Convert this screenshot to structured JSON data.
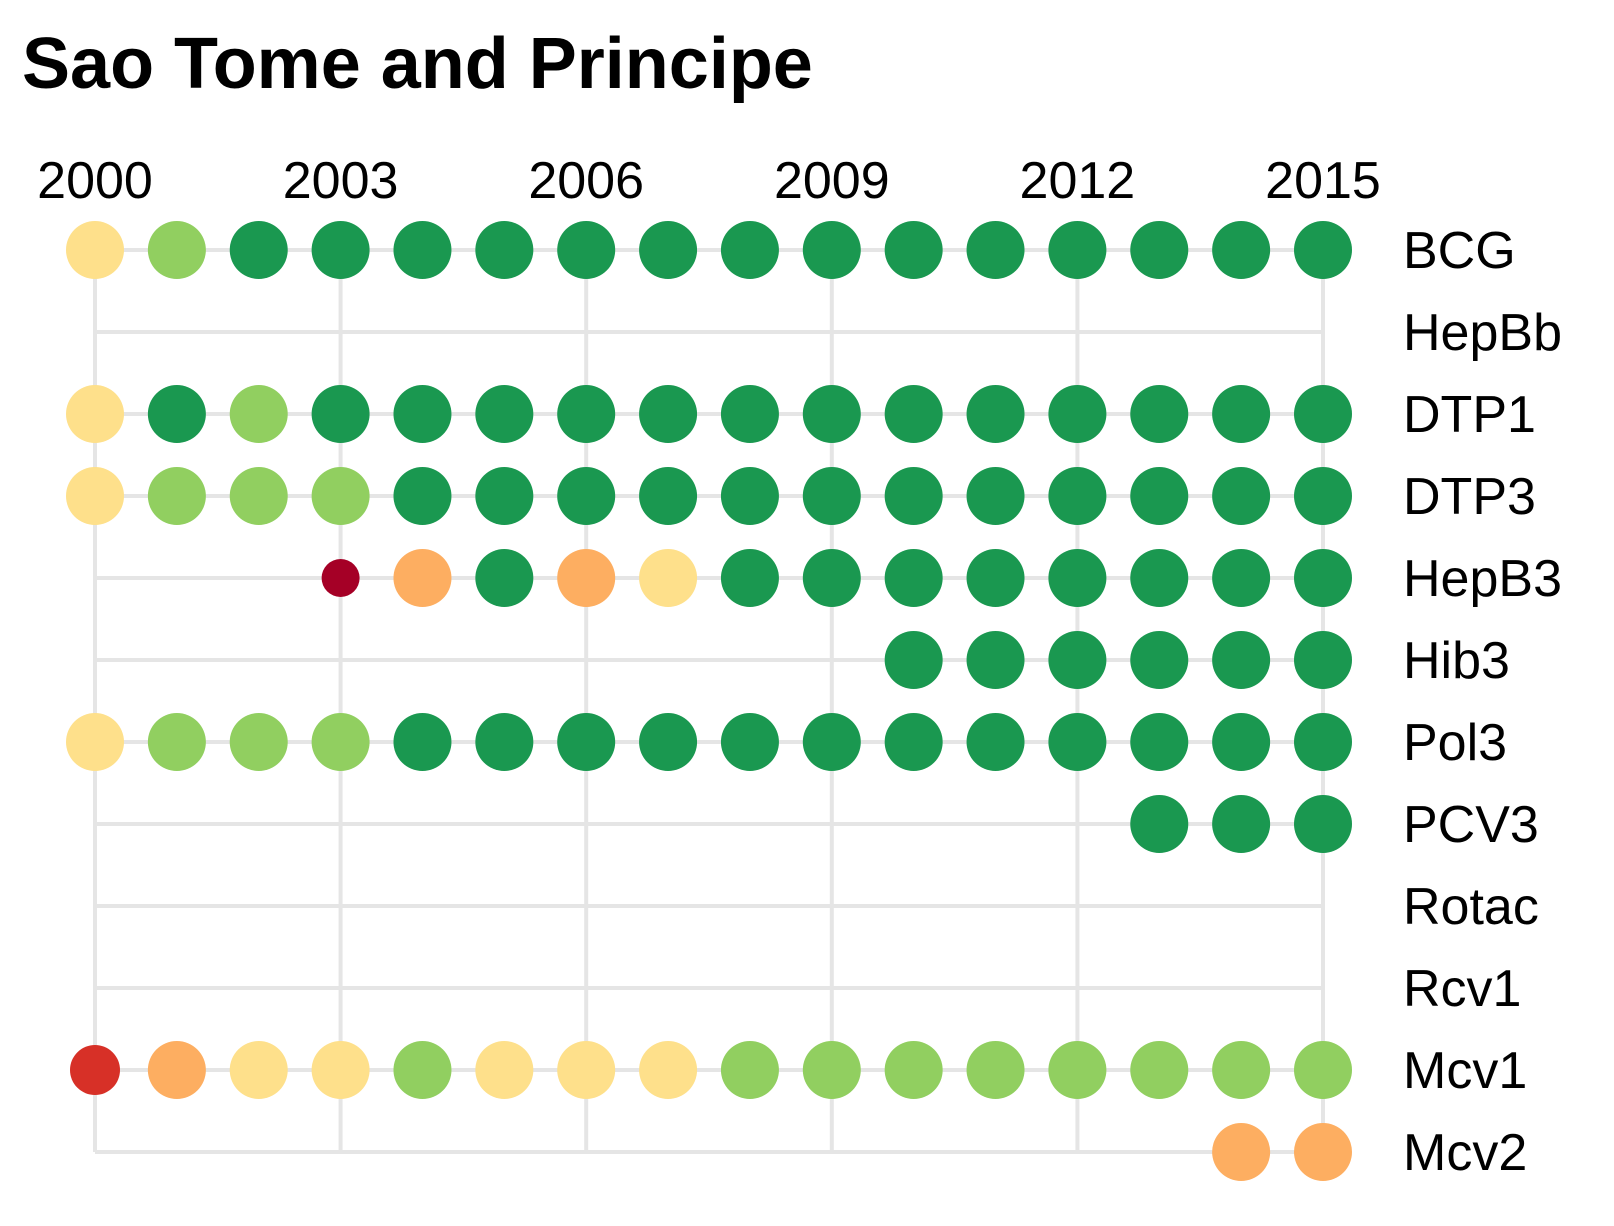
{
  "chart_data": {
    "type": "dot-matrix",
    "title": "Sao Tome and Principe",
    "x_ticks": [
      2000,
      2003,
      2006,
      2009,
      2012,
      2015
    ],
    "x_range": [
      2000,
      2015
    ],
    "years": [
      2000,
      2001,
      2002,
      2003,
      2004,
      2005,
      2006,
      2007,
      2008,
      2009,
      2010,
      2011,
      2012,
      2013,
      2014,
      2015
    ],
    "vaccines": [
      "BCG",
      "HepBb",
      "DTP1",
      "DTP3",
      "HepB3",
      "Hib3",
      "Pol3",
      "PCV3",
      "Rotac",
      "Rcv1",
      "Mcv1",
      "Mcv2"
    ],
    "grid": true,
    "colors": {
      "1": "#a50026",
      "2": "#d73027",
      "3": "#fdae61",
      "4": "#fee08b",
      "5": "#91cf60",
      "6": "#1a9850"
    },
    "series": [
      {
        "name": "BCG",
        "levels": [
          4,
          5,
          6,
          6,
          6,
          6,
          6,
          6,
          6,
          6,
          6,
          6,
          6,
          6,
          6,
          6
        ]
      },
      {
        "name": "HepBb",
        "levels": [
          null,
          null,
          null,
          null,
          null,
          null,
          null,
          null,
          null,
          null,
          null,
          null,
          null,
          null,
          null,
          null
        ]
      },
      {
        "name": "DTP1",
        "levels": [
          4,
          6,
          5,
          6,
          6,
          6,
          6,
          6,
          6,
          6,
          6,
          6,
          6,
          6,
          6,
          6
        ]
      },
      {
        "name": "DTP3",
        "levels": [
          4,
          5,
          5,
          5,
          6,
          6,
          6,
          6,
          6,
          6,
          6,
          6,
          6,
          6,
          6,
          6
        ]
      },
      {
        "name": "HepB3",
        "levels": [
          null,
          null,
          null,
          1,
          3,
          6,
          3,
          4,
          6,
          6,
          6,
          6,
          6,
          6,
          6,
          6
        ]
      },
      {
        "name": "Hib3",
        "levels": [
          null,
          null,
          null,
          null,
          null,
          null,
          null,
          null,
          null,
          null,
          6,
          6,
          6,
          6,
          6,
          6
        ]
      },
      {
        "name": "Pol3",
        "levels": [
          4,
          5,
          5,
          5,
          6,
          6,
          6,
          6,
          6,
          6,
          6,
          6,
          6,
          6,
          6,
          6
        ]
      },
      {
        "name": "PCV3",
        "levels": [
          null,
          null,
          null,
          null,
          null,
          null,
          null,
          null,
          null,
          null,
          null,
          null,
          null,
          6,
          6,
          6
        ]
      },
      {
        "name": "Rotac",
        "levels": [
          null,
          null,
          null,
          null,
          null,
          null,
          null,
          null,
          null,
          null,
          null,
          null,
          null,
          null,
          null,
          null
        ]
      },
      {
        "name": "Rcv1",
        "levels": [
          null,
          null,
          null,
          null,
          null,
          null,
          null,
          null,
          null,
          null,
          null,
          null,
          null,
          null,
          null,
          null
        ]
      },
      {
        "name": "Mcv1",
        "levels": [
          2,
          3,
          4,
          4,
          5,
          4,
          4,
          4,
          5,
          5,
          5,
          5,
          5,
          5,
          5,
          5
        ]
      },
      {
        "name": "Mcv2",
        "levels": [
          null,
          null,
          null,
          null,
          null,
          null,
          null,
          null,
          null,
          null,
          null,
          null,
          null,
          null,
          3,
          3
        ]
      }
    ]
  }
}
